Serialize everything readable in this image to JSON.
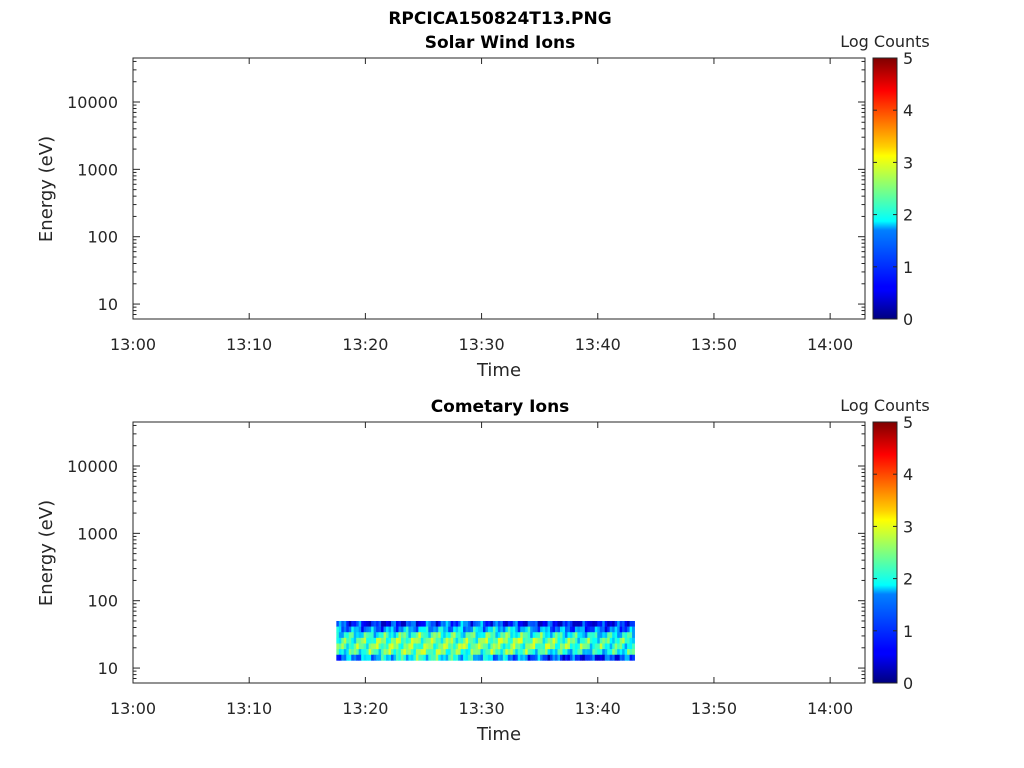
{
  "figure": {
    "title": "RPCICA150824T13.PNG"
  },
  "chart_data": [
    {
      "type": "heatmap",
      "title": "Solar Wind Ions",
      "xlabel": "Time",
      "ylabel": "Energy (eV)",
      "xlim": [
        "13:00",
        "14:03"
      ],
      "ylim": [
        6,
        45000
      ],
      "yscale": "log",
      "x_ticks": [
        "13:00",
        "13:10",
        "13:20",
        "13:30",
        "13:40",
        "13:50",
        "14:00"
      ],
      "y_ticks": [
        10,
        100,
        1000,
        10000
      ],
      "y_tick_labels": [
        "10",
        "100",
        "1000",
        "10000"
      ],
      "colorbar": {
        "label": "Log Counts",
        "range": [
          0,
          5
        ],
        "ticks": [
          "0",
          "1",
          "2",
          "3",
          "4",
          "5"
        ],
        "colormap": "jet"
      },
      "data": null
    },
    {
      "type": "heatmap",
      "title": "Cometary Ions",
      "xlabel": "Time",
      "ylabel": "Energy (eV)",
      "xlim": [
        "13:00",
        "14:03"
      ],
      "ylim": [
        6,
        45000
      ],
      "yscale": "log",
      "x_ticks": [
        "13:00",
        "13:10",
        "13:20",
        "13:30",
        "13:40",
        "13:50",
        "14:00"
      ],
      "y_ticks": [
        10,
        100,
        1000,
        10000
      ],
      "y_tick_labels": [
        "10",
        "100",
        "1000",
        "10000"
      ],
      "colorbar": {
        "label": "Log Counts",
        "range": [
          0,
          5
        ],
        "ticks": [
          "0",
          "1",
          "2",
          "3",
          "4",
          "5"
        ],
        "colormap": "jet"
      },
      "data": {
        "time_range": [
          "13:17:30",
          "13:43:10"
        ],
        "energy_range": [
          13,
          50
        ],
        "energy_bins": [
          13.7,
          16.7,
          20.3,
          24.8,
          30.2,
          36.8,
          44.8
        ],
        "log_counts_typical": [
          0.8,
          2.6
        ],
        "log_counts_by_bin": [
          [
            1.2,
            1.6,
            2.1,
            1.8,
            1.4,
            1.0,
            0.7,
            1.1
          ],
          [
            2.0,
            2.3,
            2.6,
            2.2,
            2.4,
            2.0,
            1.8,
            2.1
          ],
          [
            2.2,
            2.5,
            2.4,
            2.6,
            2.3,
            2.5,
            2.2,
            2.0
          ],
          [
            2.1,
            2.4,
            2.5,
            2.3,
            2.6,
            2.4,
            2.1,
            2.2
          ],
          [
            1.9,
            2.0,
            2.3,
            2.1,
            2.2,
            2.0,
            1.8,
            1.9
          ],
          [
            1.4,
            1.2,
            1.6,
            1.5,
            1.7,
            1.3,
            1.1,
            1.2
          ],
          [
            1.0,
            0.6,
            0.9,
            1.2,
            0.8,
            0.7,
            0.5,
            0.9
          ]
        ]
      }
    }
  ]
}
